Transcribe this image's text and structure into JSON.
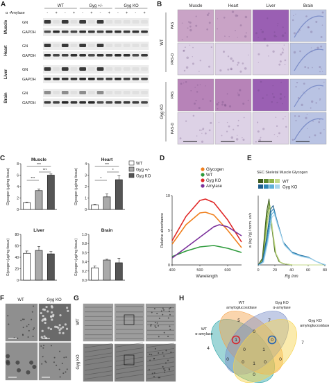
{
  "panels": {
    "A": {
      "label": "A",
      "amylase_label": "α -Amylase",
      "groups": [
        "WT",
        "Gyg +/-",
        "Gyg KO"
      ],
      "lane_signs": [
        "-",
        "+",
        "-",
        "+",
        "-",
        "+",
        "-",
        "+",
        "-",
        "+",
        "-",
        "+"
      ],
      "tissues": [
        {
          "name": "Muscle",
          "rows": [
            "GN",
            "GAPDH"
          ]
        },
        {
          "name": "Heart",
          "rows": [
            "GN",
            "GAPDH"
          ]
        },
        {
          "name": "Liver",
          "rows": [
            "GN",
            "GAPDH"
          ]
        },
        {
          "name": "Brain",
          "rows": [
            "GN",
            "GAPDH"
          ]
        }
      ]
    },
    "B": {
      "label": "B",
      "columns": [
        "Muscle",
        "Heart",
        "Liver",
        "Brain"
      ],
      "row_groups": [
        {
          "name": "WT",
          "rows": [
            "PAS",
            "PAS-D"
          ]
        },
        {
          "name": "Gyg KO",
          "rows": [
            "PAS",
            "PAS-D"
          ]
        }
      ],
      "colors": {
        "pas_muscle": "#c9a3c6",
        "pas_liver": "#9a5fb3",
        "pas_d": "#ddd2e6",
        "brain": "#b9c3e3"
      }
    },
    "C": {
      "label": "C",
      "legend": [
        "WT",
        "Gyg +/-",
        "Gyg KO"
      ],
      "bar_colors": [
        "#ffffff",
        "#aaaaaa",
        "#555555"
      ]
    },
    "D": {
      "label": "D",
      "legend": [
        "Glycogen",
        "WT",
        "Gyg KO",
        "Amylase"
      ],
      "colors": [
        "#f07f1c",
        "#2c9a3a",
        "#e02727",
        "#7a2f9a"
      ]
    },
    "E": {
      "label": "E",
      "title": "SEC Skeletal Muscle Glycogen",
      "legend": [
        "WT",
        "Gyg KO"
      ],
      "wt_swatches": [
        "#3d5a1e",
        "#5f8a2e",
        "#8fb24a",
        "#c3d98a"
      ],
      "ko_swatches": [
        "#1f5e8c",
        "#2f86b7",
        "#5fb0d9",
        "#a9d6ee"
      ]
    },
    "F": {
      "label": "F",
      "columns": [
        "WT",
        "Gyg KO"
      ]
    },
    "G": {
      "label": "G",
      "rows": [
        "WT",
        "Gyg KO"
      ]
    },
    "H": {
      "label": "H",
      "sets": [
        {
          "name": "WT\nα-amylase",
          "lines": [
            "WT",
            "α-amylase"
          ]
        },
        {
          "name": "WT amyloglucosidase",
          "lines": [
            "WT",
            "amyloglucosidase"
          ]
        },
        {
          "name": "Gyg KO α-amylase",
          "lines": [
            "Gyg KO",
            "α-amylase"
          ]
        },
        {
          "name": "Gyg KO amyloglucosidase",
          "lines": [
            "Gyg KO",
            "amyloglucosidase"
          ]
        }
      ],
      "region_values": [
        "4",
        "5",
        "7",
        "7",
        "0",
        "1",
        "0",
        "0",
        "0",
        "1",
        "0",
        "1",
        "0",
        "0",
        "0"
      ],
      "colors": [
        "#2aa3a6",
        "#f4a14a",
        "#7b8fc7",
        "#f6d24a"
      ]
    }
  },
  "chart_data": [
    {
      "type": "bar",
      "title": "Muscle",
      "categories": [
        "WT",
        "Gyg +/-",
        "Gyg KO"
      ],
      "values": [
        1.2,
        3.3,
        6.0
      ],
      "ylabel": "Glycogen (μg/mg tissue)",
      "ylim": [
        0,
        8
      ],
      "yticks": [
        "0",
        "2",
        "4",
        "6",
        "8"
      ],
      "significance": [
        "***",
        "***",
        "***"
      ]
    },
    {
      "type": "bar",
      "title": "Heart",
      "categories": [
        "WT",
        "Gyg +/-",
        "Gyg KO"
      ],
      "values": [
        0.4,
        1.1,
        2.6
      ],
      "ylabel": "Glycogen (μg/mg tissue)",
      "ylim": [
        0,
        4
      ],
      "yticks": [
        "0",
        "1",
        "2",
        "3",
        "4"
      ],
      "significance": [
        "*",
        "*",
        "***"
      ]
    },
    {
      "type": "bar",
      "title": "Liver",
      "categories": [
        "WT",
        "Gyg +/-",
        "Gyg KO"
      ],
      "values": [
        47,
        52,
        46
      ],
      "ylabel": "Glycogen (μg/mg tissue)",
      "ylim": [
        0,
        80
      ],
      "yticks": [
        "0",
        "20",
        "40",
        "60",
        "80"
      ]
    },
    {
      "type": "bar",
      "title": "Brain",
      "categories": [
        "WT",
        "Gyg +/-",
        "Gyg KO"
      ],
      "values": [
        0.27,
        0.44,
        0.38
      ],
      "ylabel": "Glycogen (μg/mg tissue)",
      "ylim": [
        0,
        1.0
      ],
      "yticks": [
        "0.0",
        "0.2",
        "0.4",
        "0.6",
        "0.8",
        "1.0"
      ]
    },
    {
      "type": "line",
      "xlabel": "Wavelength",
      "ylabel": "Relative absorbance",
      "xlim": [
        400,
        650
      ],
      "ylim": [
        0,
        10
      ],
      "xticks": [
        "400",
        "500",
        "600"
      ],
      "yticks": [
        "0",
        "5",
        "10"
      ],
      "series": [
        {
          "name": "Glycogen",
          "x": [
            400,
            450,
            500,
            520,
            550,
            600,
            650
          ],
          "y": [
            3.0,
            5.8,
            7.5,
            7.6,
            7.2,
            5.0,
            2.5
          ]
        },
        {
          "name": "WT",
          "x": [
            400,
            450,
            500,
            550,
            600,
            650
          ],
          "y": [
            1.2,
            2.0,
            2.6,
            2.8,
            2.4,
            1.8
          ]
        },
        {
          "name": "Gyg KO",
          "x": [
            400,
            450,
            500,
            520,
            550,
            600,
            650
          ],
          "y": [
            3.5,
            7.0,
            9.3,
            9.5,
            9.0,
            6.5,
            3.3
          ]
        },
        {
          "name": "Amylase",
          "x": [
            400,
            450,
            500,
            550,
            570,
            600,
            650
          ],
          "y": [
            1.0,
            2.5,
            4.0,
            5.5,
            5.8,
            5.5,
            4.2
          ]
        }
      ]
    },
    {
      "type": "line",
      "title": "SEC Skeletal Muscle Glycogen",
      "xlabel": "Rg /nm",
      "ylabel": "w (log Vg) / norm. un/s",
      "xlim": [
        0,
        80
      ],
      "xticks": [
        "0",
        "20",
        "40",
        "60",
        "80"
      ],
      "series": [
        {
          "name": "WT",
          "x": [
            0,
            5,
            10,
            13,
            16,
            20,
            25,
            30,
            40,
            60,
            80
          ],
          "y": [
            0.0,
            0.1,
            0.8,
            1.0,
            0.6,
            0.2,
            0.05,
            0.02,
            0.0,
            0.0,
            0.0
          ]
        },
        {
          "name": "Gyg KO",
          "x": [
            0,
            5,
            10,
            15,
            18,
            22,
            30,
            40,
            50,
            60,
            70,
            80
          ],
          "y": [
            0.0,
            0.05,
            0.4,
            0.85,
            0.9,
            0.7,
            0.35,
            0.2,
            0.15,
            0.12,
            0.05,
            0.0
          ]
        }
      ]
    }
  ]
}
